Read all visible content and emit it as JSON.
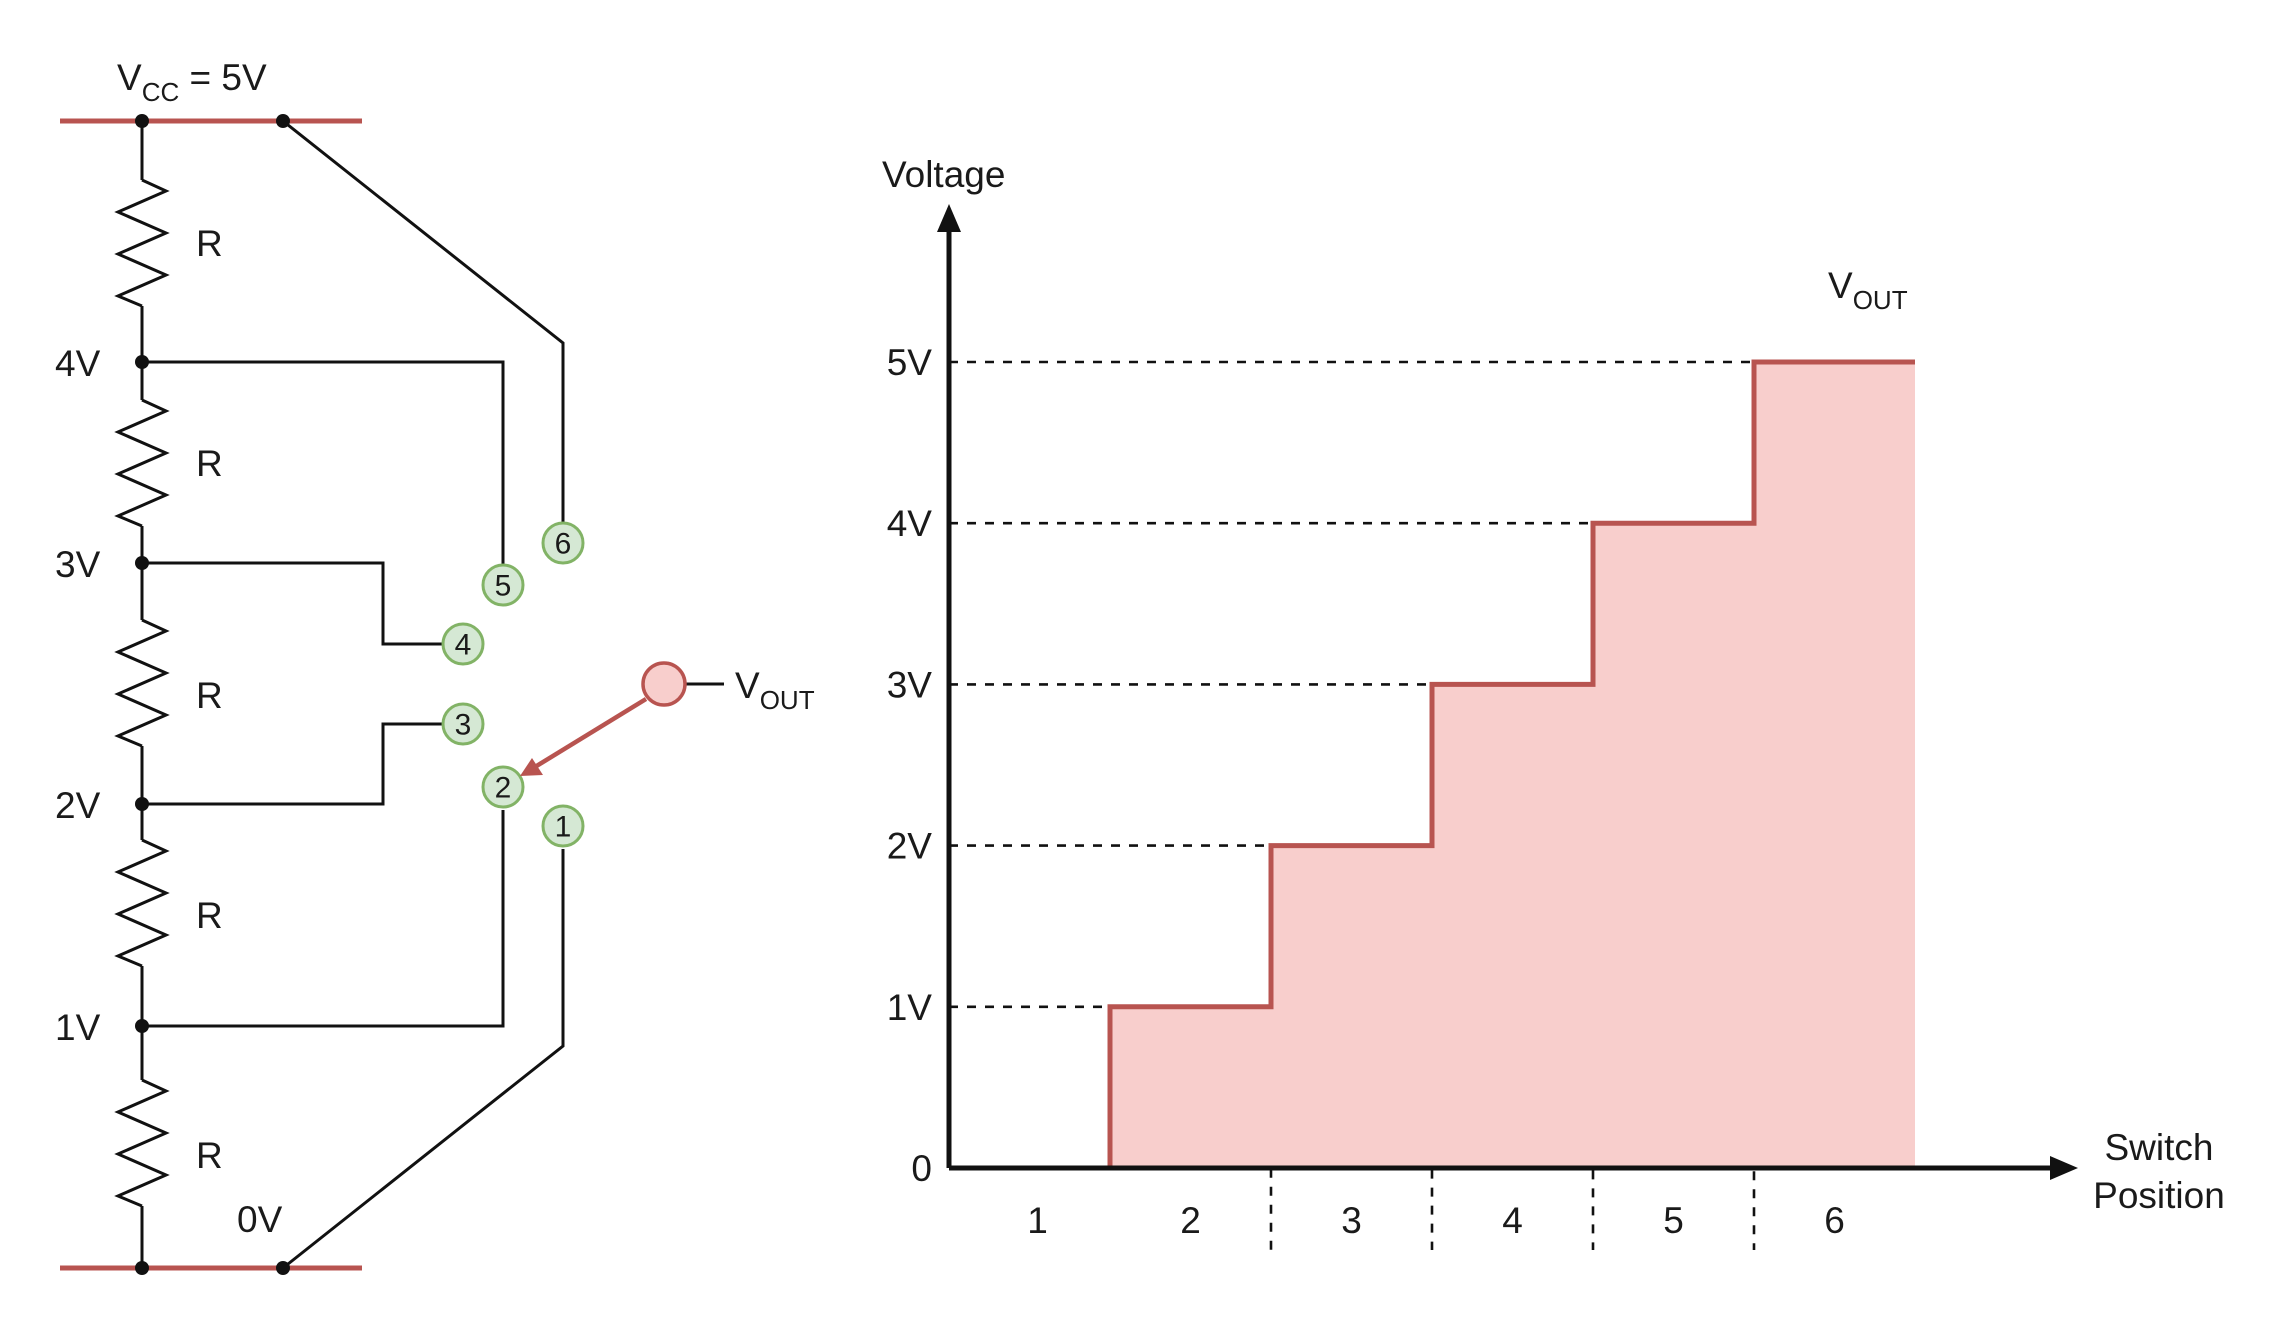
{
  "circuit": {
    "vcc_label": {
      "main": "V",
      "sub": "CC",
      "rest": " = 5V"
    },
    "node_labels": [
      "4V",
      "3V",
      "2V",
      "1V"
    ],
    "ground_label": "0V",
    "resistor_label": "R",
    "switch_positions": [
      "1",
      "2",
      "3",
      "4",
      "5",
      "6"
    ],
    "selected_position": "2",
    "output_label": {
      "main": "V",
      "sub": "OUT"
    },
    "colors": {
      "rail": "#b85450",
      "terminal_fill": "#d5e8d4",
      "terminal_stroke": "#82b366",
      "wiper_fill": "#f8cecc",
      "wiper_stroke": "#b85450"
    }
  },
  "chart": {
    "ylabel": "Voltage",
    "xlabel_line1": "Switch",
    "xlabel_line2": "Position",
    "series_label": {
      "main": "V",
      "sub": "OUT"
    },
    "colors": {
      "line": "#b85450",
      "fill": "#f8cecc"
    }
  },
  "chart_data": {
    "type": "area",
    "step": "post",
    "title": "",
    "xlabel": "Switch Position",
    "ylabel": "Voltage",
    "categories": [
      "1",
      "2",
      "3",
      "4",
      "5",
      "6"
    ],
    "series": [
      {
        "name": "VOUT",
        "values": [
          0,
          1,
          2,
          3,
          4,
          5
        ]
      }
    ],
    "y_ticks": [
      "0",
      "1V",
      "2V",
      "3V",
      "4V",
      "5V"
    ],
    "ylim": [
      0,
      5
    ],
    "grid": "dashed guide lines at each step",
    "legend": "none"
  }
}
